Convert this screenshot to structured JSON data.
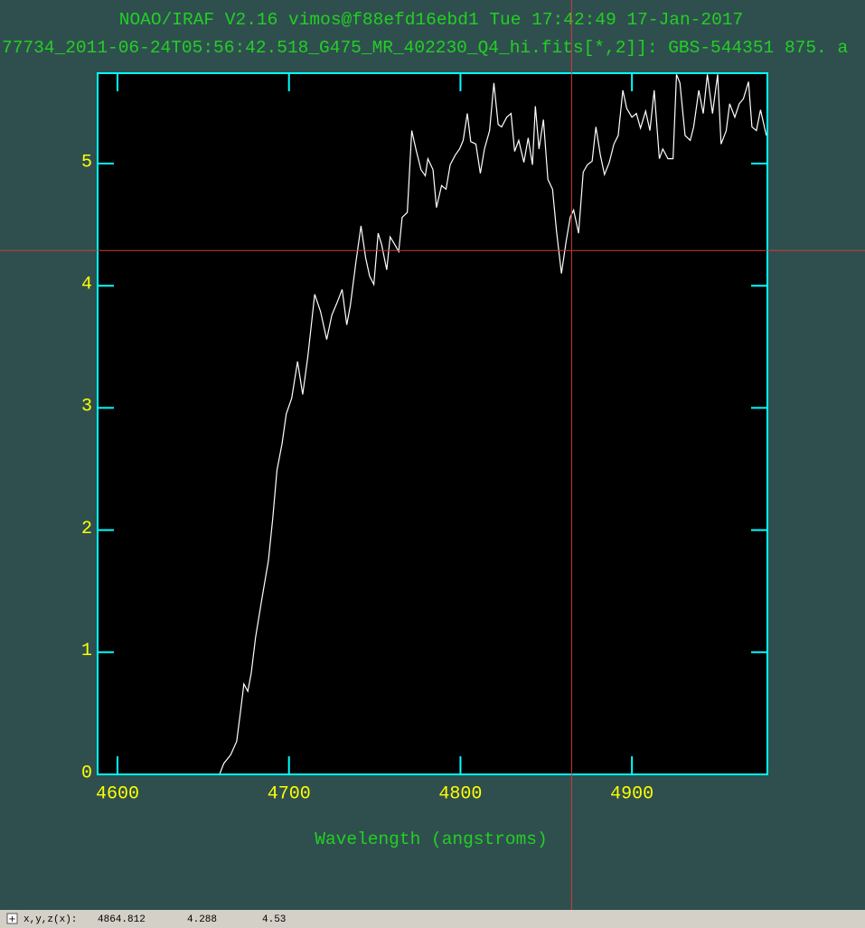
{
  "chart_data": {
    "type": "line",
    "title": "NOAO/IRAF V2.16 vimos@f88efd16ebd1 Tue 17:42:49 17-Jan-2017",
    "subtitle": "77734_2011-06-24T05:56:42.518_G475_MR_402230_Q4_hi.fits[*,2]]: GBS-544351 875. a",
    "x_label": "Wavelength (angstroms)",
    "xlim": [
      4588.4,
      4979
    ],
    "ylim": [
      0,
      5.74
    ],
    "xticks": [
      4600,
      4700,
      4800,
      4900
    ],
    "yticks": [
      0,
      1,
      2,
      3,
      4,
      5
    ],
    "color": "#ffffff",
    "x": [
      4588.4,
      4659.5,
      4662,
      4666,
      4669.5,
      4671.6,
      4673.7,
      4676,
      4678,
      4680.5,
      4684,
      4688,
      4690.5,
      4693,
      4696,
      4698.4,
      4701.6,
      4705,
      4708,
      4711,
      4715,
      4718.4,
      4722,
      4725,
      4728,
      4731,
      4733.7,
      4735.8,
      4739,
      4742,
      4744.7,
      4747,
      4749.5,
      4752,
      4754,
      4757,
      4759,
      4761.6,
      4764,
      4766,
      4769,
      4771.6,
      4774,
      4777,
      4779.5,
      4781,
      4784,
      4786,
      4789,
      4791.6,
      4794,
      4797,
      4799.5,
      4801.6,
      4804,
      4806,
      4809,
      4811.6,
      4814,
      4817,
      4819.5,
      4822,
      4824,
      4827,
      4829.5,
      4831.6,
      4834,
      4837,
      4839.5,
      4842,
      4843.7,
      4845.8,
      4848.4,
      4851,
      4853.7,
      4856,
      4858.9,
      4861.6,
      4864,
      4866,
      4868.9,
      4871.6,
      4874,
      4876.8,
      4879,
      4881.6,
      4884,
      4886.8,
      4889.5,
      4892,
      4894.7,
      4897,
      4900,
      4902.6,
      4905,
      4908,
      4910.5,
      4913,
      4916,
      4918,
      4921,
      4924,
      4926,
      4928,
      4931,
      4934,
      4936,
      4939,
      4941.6,
      4944,
      4947,
      4950,
      4952,
      4955,
      4957,
      4960,
      4962.6,
      4965,
      4968,
      4970,
      4972.6,
      4975,
      4978.4
    ],
    "values": [
      0,
      0,
      0.09,
      0.16,
      0.27,
      0.5,
      0.74,
      0.68,
      0.83,
      1.12,
      1.42,
      1.75,
      2.09,
      2.49,
      2.71,
      2.95,
      3.08,
      3.38,
      3.11,
      3.42,
      3.93,
      3.79,
      3.56,
      3.76,
      3.86,
      3.97,
      3.68,
      3.84,
      4.19,
      4.49,
      4.23,
      4.08,
      4.01,
      4.43,
      4.34,
      4.13,
      4.4,
      4.34,
      4.28,
      4.56,
      4.6,
      5.27,
      5.12,
      4.95,
      4.9,
      5.04,
      4.95,
      4.64,
      4.82,
      4.79,
      4.99,
      5.07,
      5.12,
      5.19,
      5.41,
      5.18,
      5.16,
      4.92,
      5.12,
      5.27,
      5.66,
      5.32,
      5.3,
      5.38,
      5.41,
      5.1,
      5.19,
      5.01,
      5.21,
      4.99,
      5.47,
      5.12,
      5.36,
      4.87,
      4.79,
      4.45,
      4.1,
      4.36,
      4.56,
      4.62,
      4.43,
      4.93,
      4.99,
      5.02,
      5.3,
      5.07,
      4.91,
      5.01,
      5.16,
      5.23,
      5.6,
      5.45,
      5.38,
      5.41,
      5.29,
      5.43,
      5.27,
      5.6,
      5.04,
      5.12,
      5.04,
      5.04,
      5.73,
      5.66,
      5.23,
      5.19,
      5.3,
      5.6,
      5.41,
      5.73,
      5.41,
      5.73,
      5.16,
      5.27,
      5.49,
      5.38,
      5.49,
      5.53,
      5.67,
      5.3,
      5.27,
      5.44,
      5.23
    ],
    "cursor_label": "x,y,z(x):",
    "cursor": {
      "x": 4864.812,
      "y": 4.288,
      "z": 4.53
    }
  }
}
